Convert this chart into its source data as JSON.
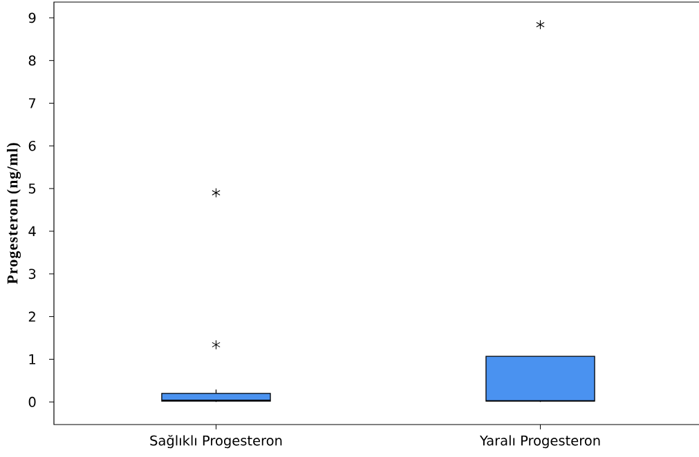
{
  "chart_data": {
    "type": "box",
    "ylabel": "Progesteron (ng/ml)",
    "categories": [
      "Sağlıklı Progesteron",
      "Yaralı Progesteron"
    ],
    "boxes": [
      {
        "low": 0.0,
        "q1": 0.02,
        "median": 0.04,
        "q3": 0.2,
        "high": 0.29,
        "outliers": [
          1.34,
          4.9
        ]
      },
      {
        "low": 0.0,
        "q1": 0.02,
        "median": 0.03,
        "q3": 1.07,
        "high": 1.07,
        "outliers": [
          8.84
        ]
      }
    ],
    "color": "#4a92f0",
    "ylim": [
      -0.53,
      9.37
    ],
    "yticks": [
      0,
      1,
      2,
      3,
      4,
      5,
      6,
      7,
      8,
      9
    ],
    "marker": "star"
  }
}
